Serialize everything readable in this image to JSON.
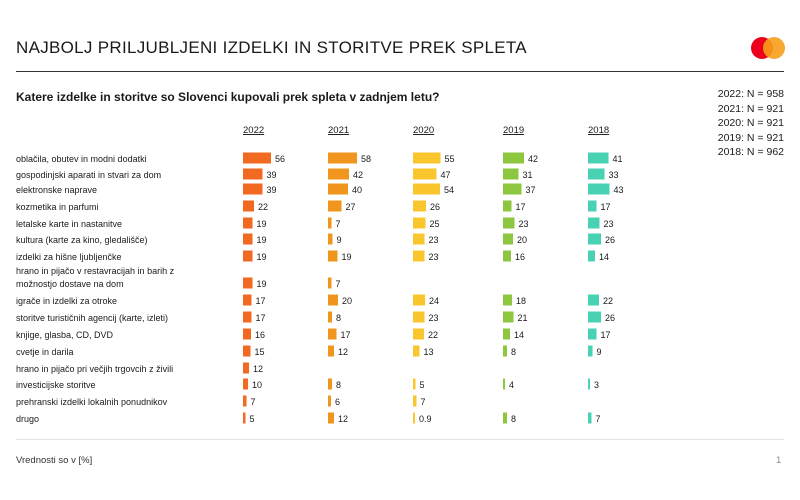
{
  "page": {
    "title": "NAJBOLJ PRILJUBLJENI IZDELKI IN STORITVE PREK SPLETA",
    "question": "Katere izdelke in storitve so Slovenci kupovali prek spleta v zadnjem letu?",
    "sample_sizes": [
      "2022: N = 958",
      "2021: N = 921",
      "2020: N = 921",
      "2019: N = 921",
      "2018: N = 962"
    ],
    "footer_note": "Vrednosti so v [%]",
    "page_number": "1",
    "logo_colors": {
      "left": "#eb001b",
      "right": "#f79e1b"
    }
  },
  "chart_data": {
    "type": "bar",
    "title": "NAJBOLJ PRILJUBLJENI IZDELKI IN STORITVE PREK SPLETA",
    "orientation": "horizontal",
    "unit": "%",
    "categories": [
      [
        "oblačila, obutev in modni dodatki"
      ],
      [
        "gospodinjski aparati in stvari za dom"
      ],
      [
        "elektronske naprave"
      ],
      [
        "kozmetika in parfumi"
      ],
      [
        "letalske karte in nastanitve"
      ],
      [
        "kultura (karte za kino, gledališče)"
      ],
      [
        "izdelki za hišne ljubljenčke"
      ],
      [
        "hrano in pijačo v restavracijah in barih z",
        "možnostjo dostave na dom"
      ],
      [
        "igrače in izdelki za otroke"
      ],
      [
        "storitve turističnih agencij (karte, izleti)"
      ],
      [
        "knjige, glasba, CD, DVD"
      ],
      [
        "cvetje in darila"
      ],
      [
        "hrano in pijačo pri večjih trgovcih z živili"
      ],
      [
        "investicijske storitve"
      ],
      [
        "prehranski izdelki lokalnih ponudnikov"
      ],
      [
        "drugo"
      ]
    ],
    "series": [
      {
        "name": "2022",
        "color": "#f26a21",
        "values": [
          56,
          39,
          39,
          22,
          19,
          19,
          19,
          19,
          17,
          17,
          16,
          15,
          12,
          10,
          7,
          5
        ]
      },
      {
        "name": "2021",
        "color": "#f0961e",
        "values": [
          58,
          42,
          40,
          27,
          7,
          9,
          19,
          7,
          20,
          8,
          17,
          12,
          null,
          8,
          6,
          12
        ]
      },
      {
        "name": "2020",
        "color": "#f9c72d",
        "values": [
          55,
          47,
          54,
          26,
          25,
          23,
          23,
          null,
          24,
          23,
          22,
          13,
          null,
          5,
          7,
          0.9
        ]
      },
      {
        "name": "2019",
        "color": "#8dc63f",
        "values": [
          42,
          31,
          37,
          17,
          23,
          20,
          16,
          null,
          18,
          21,
          14,
          8,
          null,
          4,
          null,
          8
        ]
      },
      {
        "name": "2018",
        "color": "#48d1b3",
        "values": [
          41,
          33,
          43,
          17,
          23,
          26,
          14,
          null,
          22,
          26,
          17,
          9,
          null,
          3,
          null,
          7
        ]
      }
    ],
    "value_labels": [
      [
        "56",
        "39",
        "39",
        "22",
        "19",
        "19",
        "19",
        "19",
        "17",
        "17",
        "16",
        "15",
        "12",
        "10",
        "7",
        "5"
      ],
      [
        "58",
        "42",
        "40",
        "27",
        "7",
        "9",
        "19",
        "7",
        "20",
        "8",
        "17",
        "12",
        "",
        "8",
        "6",
        "12"
      ],
      [
        "55",
        "47",
        "54",
        "26",
        "25",
        "23",
        "23",
        "",
        "24",
        "23",
        "22",
        "13",
        "",
        "5",
        "7",
        "0.9"
      ],
      [
        "42",
        "31",
        "37",
        "17",
        "23",
        "20",
        "16",
        "",
        "18",
        "21",
        "14",
        "8",
        "",
        "4",
        "",
        "8"
      ],
      [
        "41",
        "33",
        "43",
        "17",
        "23",
        "26",
        "14",
        "",
        "22",
        "26",
        "17",
        "9",
        "",
        "3",
        "",
        "7"
      ]
    ]
  }
}
